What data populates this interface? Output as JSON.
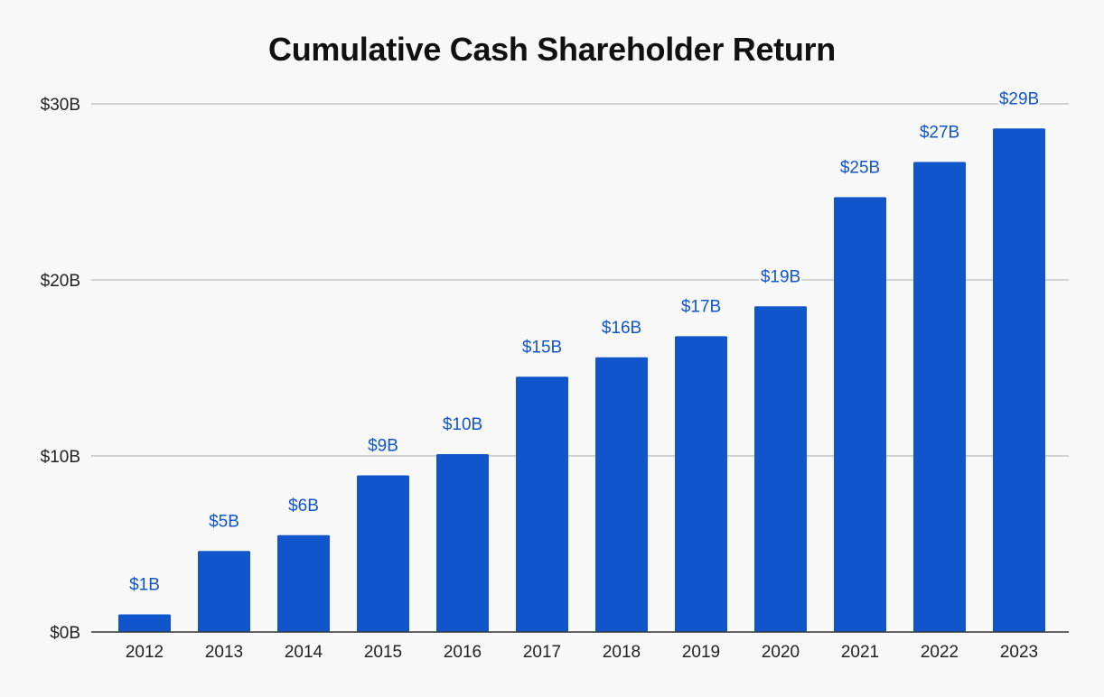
{
  "chart_data": {
    "type": "bar",
    "title": "Cumulative Cash Shareholder Return",
    "xlabel": "",
    "ylabel": "",
    "categories": [
      "2012",
      "2013",
      "2014",
      "2015",
      "2016",
      "2017",
      "2018",
      "2019",
      "2020",
      "2021",
      "2022",
      "2023"
    ],
    "values": [
      1.0,
      4.6,
      5.5,
      8.9,
      10.1,
      14.5,
      15.6,
      16.8,
      18.5,
      24.7,
      26.7,
      28.6
    ],
    "data_labels": [
      "$1B",
      "$5B",
      "$6B",
      "$9B",
      "$10B",
      "$15B",
      "$16B",
      "$17B",
      "$19B",
      "$25B",
      "$27B",
      "$29B"
    ],
    "ylim": [
      0,
      30
    ],
    "yticks": [
      0,
      10,
      20,
      30
    ],
    "ytick_labels": [
      "$0B",
      "$10B",
      "$20B",
      "$30B"
    ],
    "grid": true,
    "legend": "none",
    "colors": {
      "bar": "#1155cc",
      "label": "#1155cc",
      "grid": "#bbbbbb",
      "axis": "#333333",
      "background": "#f8f8f8"
    }
  }
}
